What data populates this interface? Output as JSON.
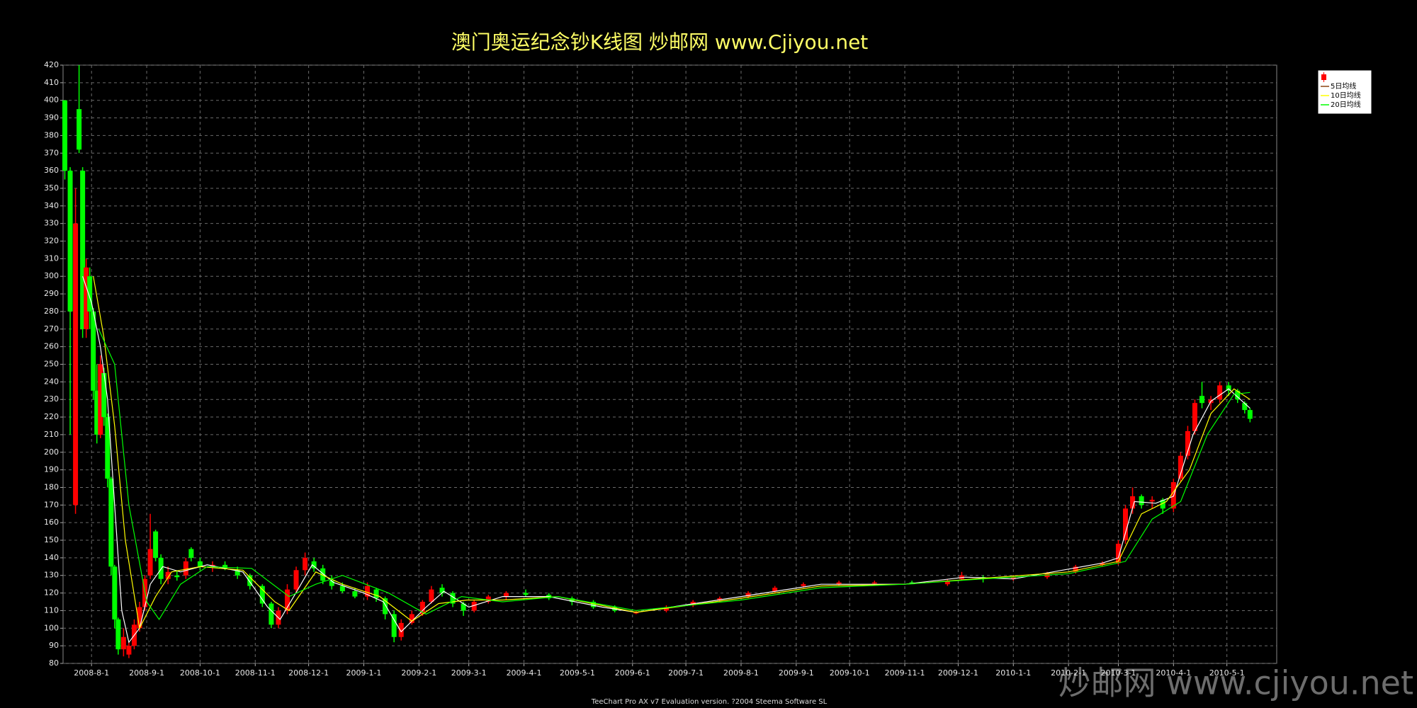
{
  "chart_data": {
    "type": "candlestick",
    "title": "澳门奥运纪念钞K线图  炒邮网 www.Cjiyou.net",
    "footer": "TeeChart Pro AX v7 Evaluation version. ?2004 Steema Software SL",
    "watermark": "炒邮网 www.cjiyou.net",
    "grid": true,
    "legend": "top-right",
    "ylim": [
      80,
      420
    ],
    "yticks": [
      80,
      90,
      100,
      110,
      120,
      130,
      140,
      150,
      160,
      170,
      180,
      190,
      200,
      210,
      220,
      230,
      240,
      250,
      260,
      270,
      280,
      290,
      300,
      310,
      320,
      330,
      340,
      350,
      360,
      370,
      380,
      390,
      400,
      410,
      420
    ],
    "xlim": [
      "2008-7-16",
      "2010-5-29"
    ],
    "xticks": [
      "2008-8-1",
      "2008-9-1",
      "2008-10-1",
      "2008-11-1",
      "2008-12-1",
      "2009-1-1",
      "2009-2-1",
      "2009-3-1",
      "2009-4-1",
      "2009-5-1",
      "2009-6-1",
      "2009-7-1",
      "2009-8-1",
      "2009-9-1",
      "2009-10-1",
      "2009-11-1",
      "2009-12-1",
      "2010-1-1",
      "2010-2-1",
      "2010-3-1",
      "2010-4-1",
      "2010-5-1"
    ],
    "candles": {
      "up_color": "#ff0000",
      "down_color": "#00ff00",
      "x": [
        "2008-7-17",
        "2008-7-20",
        "2008-7-23",
        "2008-7-25",
        "2008-7-27",
        "2008-7-29",
        "2008-7-31",
        "2008-8-2",
        "2008-8-4",
        "2008-8-6",
        "2008-8-8",
        "2008-8-10",
        "2008-8-12",
        "2008-8-14",
        "2008-8-16",
        "2008-8-19",
        "2008-8-22",
        "2008-8-25",
        "2008-8-28",
        "2008-8-31",
        "2008-9-3",
        "2008-9-6",
        "2008-9-9",
        "2008-9-13",
        "2008-9-18",
        "2008-9-23",
        "2008-9-26",
        "2008-10-1",
        "2008-10-8",
        "2008-10-15",
        "2008-10-22",
        "2008-10-29",
        "2008-11-5",
        "2008-11-10",
        "2008-11-14",
        "2008-11-19",
        "2008-11-24",
        "2008-11-29",
        "2008-12-4",
        "2008-12-9",
        "2008-12-14",
        "2008-12-20",
        "2008-12-27",
        "2009-1-3",
        "2009-1-8",
        "2009-1-13",
        "2009-1-18",
        "2009-1-22",
        "2009-1-28",
        "2009-2-3",
        "2009-2-8",
        "2009-2-14",
        "2009-2-20",
        "2009-2-26",
        "2009-3-4",
        "2009-3-12",
        "2009-3-22",
        "2009-4-2",
        "2009-4-15",
        "2009-4-28",
        "2009-5-10",
        "2009-5-22",
        "2009-6-3",
        "2009-6-20",
        "2009-7-5",
        "2009-7-20",
        "2009-8-5",
        "2009-8-20",
        "2009-9-5",
        "2009-9-25",
        "2009-10-15",
        "2009-11-5",
        "2009-11-25",
        "2009-12-3",
        "2009-12-15",
        "2010-1-1",
        "2010-1-20",
        "2010-2-5",
        "2010-2-20",
        "2010-3-1",
        "2010-3-5",
        "2010-3-9",
        "2010-3-14",
        "2010-3-20",
        "2010-3-26",
        "2010-4-1",
        "2010-4-5",
        "2010-4-9",
        "2010-4-13",
        "2010-4-17",
        "2010-4-22",
        "2010-4-27",
        "2010-5-2",
        "2010-5-7",
        "2010-5-11",
        "2010-5-14"
      ],
      "open": [
        400,
        360,
        170,
        395,
        360,
        270,
        300,
        280,
        235,
        210,
        245,
        220,
        185,
        135,
        105,
        88,
        85,
        90,
        100,
        112,
        130,
        155,
        140,
        128,
        130,
        130,
        145,
        138,
        135,
        136,
        133,
        130,
        124,
        114,
        102,
        110,
        122,
        133,
        138,
        134,
        127,
        124,
        121,
        118,
        122,
        117,
        108,
        95,
        103,
        108,
        115,
        123,
        120,
        114,
        110,
        115,
        118,
        120,
        119,
        117,
        115,
        112,
        109,
        110,
        113,
        116,
        118,
        121,
        124,
        125,
        126,
        126,
        125,
        128,
        129,
        128,
        129,
        132,
        136,
        137,
        150,
        168,
        175,
        172,
        173,
        168,
        185,
        198,
        212,
        232,
        228,
        230,
        238,
        235,
        228,
        224
      ],
      "high": [
        400,
        362,
        350,
        420,
        362,
        310,
        305,
        282,
        250,
        255,
        248,
        222,
        186,
        136,
        106,
        100,
        92,
        105,
        115,
        130,
        165,
        156,
        142,
        135,
        133,
        140,
        146,
        140,
        138,
        138,
        135,
        131,
        125,
        115,
        112,
        125,
        135,
        143,
        140,
        136,
        130,
        126,
        123,
        126,
        123,
        118,
        110,
        105,
        110,
        116,
        124,
        125,
        121,
        115,
        116,
        119,
        121,
        122,
        120,
        118,
        116,
        113,
        110,
        113,
        116,
        118,
        121,
        124,
        126,
        127,
        127,
        127,
        128,
        132,
        130,
        130,
        132,
        136,
        138,
        150,
        170,
        180,
        176,
        175,
        174,
        185,
        200,
        215,
        230,
        240,
        232,
        240,
        240,
        236,
        229,
        225
      ],
      "low": [
        355,
        210,
        165,
        370,
        265,
        265,
        270,
        230,
        205,
        208,
        215,
        180,
        130,
        100,
        85,
        84,
        83,
        88,
        98,
        110,
        128,
        138,
        125,
        125,
        127,
        128,
        138,
        133,
        132,
        133,
        128,
        122,
        112,
        100,
        100,
        108,
        120,
        130,
        132,
        125,
        122,
        120,
        117,
        116,
        115,
        105,
        92,
        93,
        102,
        107,
        114,
        118,
        112,
        107,
        109,
        114,
        116,
        118,
        116,
        113,
        111,
        109,
        108,
        109,
        112,
        115,
        117,
        120,
        123,
        124,
        125,
        125,
        124,
        127,
        126,
        127,
        128,
        131,
        135,
        136,
        148,
        165,
        168,
        168,
        165,
        166,
        183,
        196,
        210,
        225,
        224,
        228,
        232,
        228,
        222,
        217
      ],
      "close": [
        360,
        280,
        330,
        372,
        270,
        305,
        280,
        235,
        210,
        250,
        220,
        185,
        135,
        105,
        88,
        95,
        90,
        102,
        112,
        128,
        145,
        140,
        128,
        132,
        129,
        138,
        140,
        135,
        136,
        134,
        130,
        124,
        114,
        102,
        110,
        122,
        133,
        140,
        134,
        127,
        124,
        121,
        118,
        124,
        117,
        108,
        95,
        103,
        108,
        115,
        122,
        120,
        114,
        110,
        115,
        118,
        120,
        119,
        117,
        115,
        112,
        110,
        109,
        112,
        115,
        117,
        120,
        123,
        125,
        126,
        126,
        125,
        127,
        130,
        128,
        129,
        131,
        135,
        137,
        148,
        168,
        175,
        170,
        173,
        168,
        183,
        198,
        212,
        228,
        228,
        230,
        238,
        235,
        230,
        224,
        219
      ]
    },
    "series": [
      {
        "name": "5日均线",
        "color": "#ffffff",
        "x": [
          "2008-7-27",
          "2008-8-1",
          "2008-8-6",
          "2008-8-10",
          "2008-8-14",
          "2008-8-18",
          "2008-8-22",
          "2008-8-28",
          "2008-9-3",
          "2008-9-10",
          "2008-9-20",
          "2008-10-5",
          "2008-10-25",
          "2008-11-8",
          "2008-11-15",
          "2008-11-25",
          "2008-12-3",
          "2008-12-15",
          "2009-1-1",
          "2009-1-12",
          "2009-1-22",
          "2009-2-5",
          "2009-2-15",
          "2009-3-1",
          "2009-3-20",
          "2009-4-15",
          "2009-5-15",
          "2009-6-3",
          "2009-8-1",
          "2009-9-15",
          "2009-11-1",
          "2009-12-5",
          "2010-1-1",
          "2010-2-20",
          "2010-3-1",
          "2010-3-10",
          "2010-3-22",
          "2010-4-1",
          "2010-4-12",
          "2010-4-22",
          "2010-5-2",
          "2010-5-14"
        ],
        "values": [
          300,
          285,
          260,
          230,
          170,
          110,
          92,
          100,
          125,
          135,
          132,
          136,
          132,
          112,
          105,
          122,
          136,
          126,
          120,
          115,
          98,
          112,
          121,
          112,
          118,
          118,
          112,
          109,
          118,
          125,
          125,
          129,
          128,
          137,
          140,
          172,
          171,
          175,
          210,
          229,
          236,
          225
        ]
      },
      {
        "name": "10日均线",
        "color": "#ffff00",
        "x": [
          "2008-8-2",
          "2008-8-8",
          "2008-8-14",
          "2008-8-20",
          "2008-8-28",
          "2008-9-6",
          "2008-9-15",
          "2008-10-1",
          "2008-10-25",
          "2008-11-12",
          "2008-11-20",
          "2008-12-5",
          "2008-12-20",
          "2009-1-10",
          "2009-1-28",
          "2009-2-12",
          "2009-2-28",
          "2009-3-20",
          "2009-4-20",
          "2009-6-3",
          "2009-8-1",
          "2009-9-15",
          "2009-11-1",
          "2009-12-10",
          "2010-2-1",
          "2010-3-1",
          "2010-3-14",
          "2010-3-28",
          "2010-4-10",
          "2010-4-22",
          "2010-5-5",
          "2010-5-14"
        ],
        "values": [
          300,
          265,
          215,
          150,
          100,
          118,
          132,
          135,
          133,
          115,
          110,
          132,
          125,
          118,
          104,
          114,
          116,
          116,
          118,
          109,
          117,
          124,
          125,
          128,
          132,
          138,
          165,
          172,
          190,
          222,
          236,
          230
        ]
      },
      {
        "name": "20日均线",
        "color": "#00ff00",
        "x": [
          "2008-8-5",
          "2008-8-14",
          "2008-8-22",
          "2008-9-1",
          "2008-9-8",
          "2008-9-20",
          "2008-10-5",
          "2008-10-30",
          "2008-11-20",
          "2008-12-5",
          "2008-12-20",
          "2009-1-15",
          "2009-2-5",
          "2009-2-25",
          "2009-3-20",
          "2009-4-20",
          "2009-6-3",
          "2009-8-1",
          "2009-9-15",
          "2009-11-1",
          "2009-12-15",
          "2010-2-1",
          "2010-3-5",
          "2010-3-20",
          "2010-4-5",
          "2010-4-20",
          "2010-5-5",
          "2010-5-14"
        ],
        "values": [
          270,
          250,
          170,
          115,
          105,
          125,
          135,
          134,
          118,
          125,
          130,
          120,
          108,
          118,
          115,
          118,
          110,
          116,
          123,
          125,
          128,
          131,
          138,
          162,
          172,
          210,
          233,
          234
        ]
      }
    ]
  }
}
